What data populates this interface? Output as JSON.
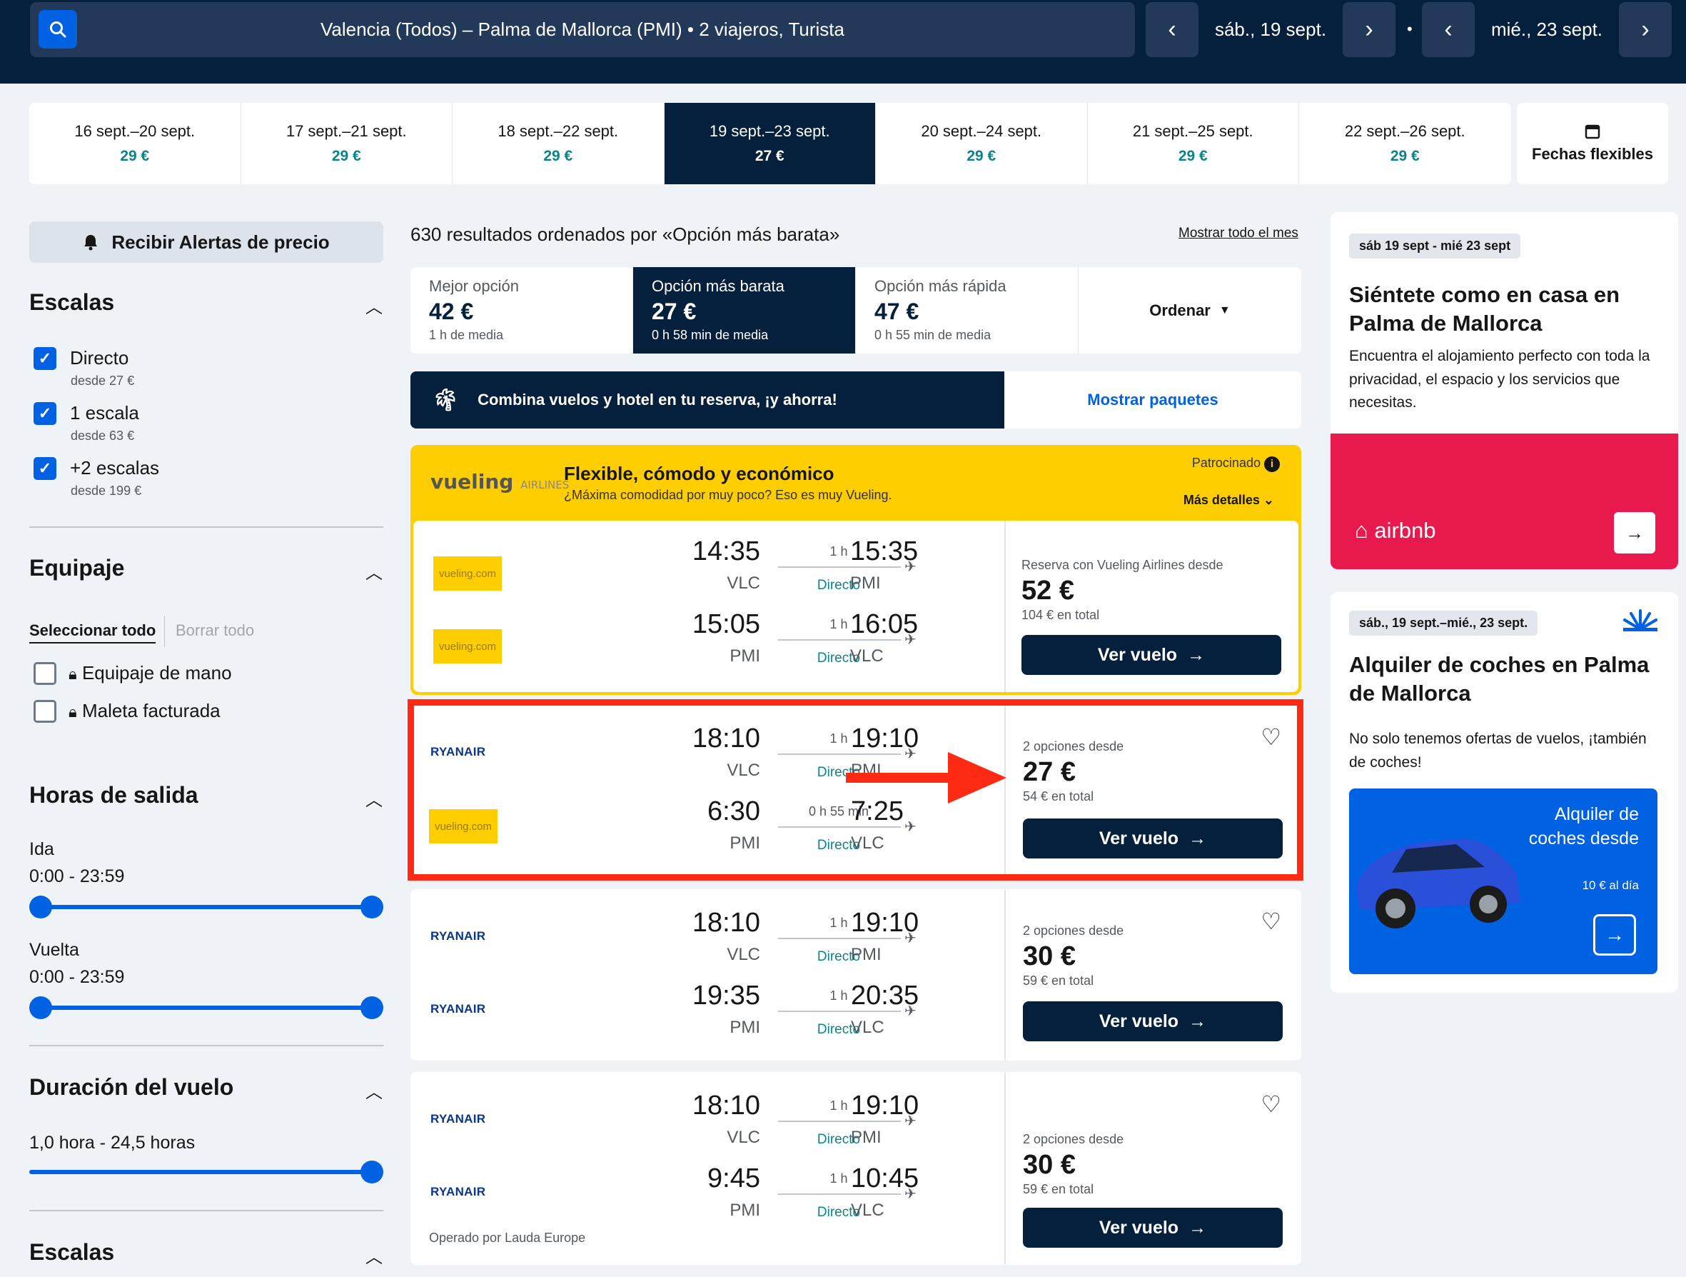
{
  "header": {
    "search_summary": "Valencia (Todos) – Palma de Mallorca (PMI)  •  2 viajeros, Turista",
    "depart_date": "sáb., 19 sept.",
    "return_date": "mié., 23 sept.",
    "separator": "•"
  },
  "date_strip": [
    {
      "range": "16 sept.–20 sept.",
      "price": "29 €"
    },
    {
      "range": "17 sept.–21 sept.",
      "price": "29 €"
    },
    {
      "range": "18 sept.–22 sept.",
      "price": "29 €"
    },
    {
      "range": "19 sept.–23 sept.",
      "price": "27 €"
    },
    {
      "range": "20 sept.–24 sept.",
      "price": "29 €"
    },
    {
      "range": "21 sept.–25 sept.",
      "price": "29 €"
    },
    {
      "range": "22 sept.–26 sept.",
      "price": "29 €"
    }
  ],
  "flexible_dates_label": "Fechas flexibles",
  "sidebar": {
    "alert_button": "Recibir Alertas de precio",
    "stops_title": "Escalas",
    "stops": [
      {
        "label": "Directo",
        "sub": "desde 27 €"
      },
      {
        "label": "1 escala",
        "sub": "desde 63 €"
      },
      {
        "label": "+2 escalas",
        "sub": "desde 199 €"
      }
    ],
    "baggage_title": "Equipaje",
    "select_all": "Seleccionar todo",
    "clear_all": "Borrar todo",
    "baggage_options": [
      "Equipaje de mano",
      "Maleta facturada"
    ],
    "departure_title": "Horas de salida",
    "outbound_label": "Ida",
    "outbound_range": "0:00 - 23:59",
    "return_label": "Vuelta",
    "return_range": "0:00 - 23:59",
    "duration_title": "Duración del vuelo",
    "duration_range": "1,0 hora - 24,5 horas",
    "stops_title_2": "Escalas"
  },
  "results": {
    "count_text": "630 resultados ordenados por «Opción más barata»",
    "show_month": "Mostrar todo el mes",
    "sort_tabs": [
      {
        "title": "Mejor opción",
        "price": "42 €",
        "sub": "1 h de media"
      },
      {
        "title": "Opción más barata",
        "price": "27 €",
        "sub": "0 h 58 min de media"
      },
      {
        "title": "Opción más rápida",
        "price": "47 €",
        "sub": "0 h 55 min de media"
      }
    ],
    "order_label": "Ordenar",
    "combo_text": "Combina vuelos y hotel en tu reserva, ¡y ahorra!",
    "combo_link": "Mostrar paquetes"
  },
  "sponsored": {
    "logo": "vueling",
    "logo_small": "AIRLINES",
    "title": "Flexible, cómodo y económico",
    "subtitle": "¿Máxima comodidad por muy poco? Eso es muy Vueling.",
    "tag": "Patrocinado",
    "more": "Más detalles"
  },
  "flights": [
    {
      "legs": [
        {
          "airline": "vueling.com",
          "dep_time": "14:35",
          "dep_airport": "VLC",
          "duration": "1 h",
          "stops": "Directo",
          "arr_time": "15:35",
          "arr_airport": "PMI"
        },
        {
          "airline": "vueling.com",
          "dep_time": "15:05",
          "dep_airport": "PMI",
          "duration": "1 h",
          "stops": "Directo",
          "arr_time": "16:05",
          "arr_airport": "VLC"
        }
      ],
      "price_from": "Reserva con Vueling Airlines desde",
      "price": "52 €",
      "total": "104 € en total",
      "button": "Ver vuelo"
    },
    {
      "legs": [
        {
          "airline": "RYANAIR",
          "dep_time": "18:10",
          "dep_airport": "VLC",
          "duration": "1 h",
          "stops": "Directo",
          "arr_time": "19:10",
          "arr_airport": "PMI"
        },
        {
          "airline": "vueling.com",
          "dep_time": "6:30",
          "dep_airport": "PMI",
          "duration": "0 h 55 min",
          "stops": "Directo",
          "arr_time": "7:25",
          "arr_airport": "VLC"
        }
      ],
      "price_from": "2 opciones desde",
      "price": "27 €",
      "total": "54 € en total",
      "button": "Ver vuelo"
    },
    {
      "legs": [
        {
          "airline": "RYANAIR",
          "dep_time": "18:10",
          "dep_airport": "VLC",
          "duration": "1 h",
          "stops": "Directo",
          "arr_time": "19:10",
          "arr_airport": "PMI"
        },
        {
          "airline": "RYANAIR",
          "dep_time": "19:35",
          "dep_airport": "PMI",
          "duration": "1 h",
          "stops": "Directo",
          "arr_time": "20:35",
          "arr_airport": "VLC"
        }
      ],
      "price_from": "2 opciones desde",
      "price": "30 €",
      "total": "59 € en total",
      "button": "Ver vuelo"
    },
    {
      "legs": [
        {
          "airline": "RYANAIR",
          "dep_time": "18:10",
          "dep_airport": "VLC",
          "duration": "1 h",
          "stops": "Directo",
          "arr_time": "19:10",
          "arr_airport": "PMI"
        },
        {
          "airline": "RYANAIR",
          "dep_time": "9:45",
          "dep_airport": "PMI",
          "duration": "1 h",
          "stops": "Directo",
          "arr_time": "10:45",
          "arr_airport": "VLC"
        }
      ],
      "price_from": "2 opciones desde",
      "price": "30 €",
      "total": "59 € en total",
      "button": "Ver vuelo",
      "operated_by": "Operado por Lauda Europe"
    }
  ],
  "right_column": {
    "airbnb": {
      "tag": "sáb 19 sept - mié 23 sept",
      "title": "Siéntete como en casa en Palma de Mallorca",
      "text": "Encuentra el alojamiento perfecto con toda la privacidad, el espacio y los servicios que necesitas.",
      "logo": "airbnb"
    },
    "cars": {
      "tag": "sáb., 19 sept.–mié., 23 sept.",
      "title": "Alquiler de coches en Palma de Mallorca",
      "text": "No solo tenemos ofertas de vuelos, ¡también de coches!",
      "panel_title": "Alquiler de coches desde",
      "panel_sub": "10 € al día"
    }
  },
  "colors": {
    "navy": "#05203c",
    "blue": "#0062e3",
    "teal": "#0c838a",
    "highlight": "#ff2a14",
    "vueling_yellow": "#ffce00",
    "airbnb_pink": "#e8194d"
  }
}
